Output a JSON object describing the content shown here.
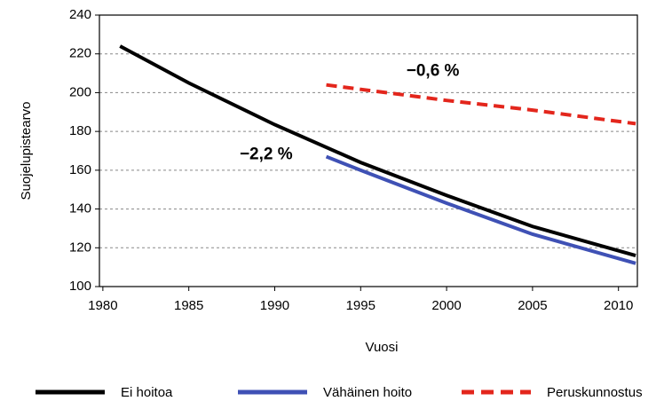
{
  "chart_data": {
    "type": "line",
    "xlabel": "Vuosi",
    "ylabel": "Suojelupistearvo",
    "xlim": [
      1979.8,
      2011.1
    ],
    "xticks": [
      1980,
      1985,
      1990,
      1995,
      2000,
      2005,
      2010
    ],
    "ylim": [
      100,
      240
    ],
    "yticks": [
      100,
      120,
      140,
      160,
      180,
      200,
      220,
      240
    ],
    "grid": true,
    "legend": "bottom",
    "series": [
      {
        "name": "Ei hoitoa",
        "color": "#000000",
        "dash": false,
        "x": [
          1981,
          1985,
          1990,
          1995,
          2000,
          2005,
          2011
        ],
        "values": [
          224,
          205,
          183.5,
          164,
          147,
          131,
          116
        ]
      },
      {
        "name": "Vähäinen hoito",
        "color": "#3f51b5",
        "dash": false,
        "x": [
          1993,
          1995,
          2000,
          2005,
          2011
        ],
        "values": [
          167,
          160,
          143,
          127,
          112
        ]
      },
      {
        "name": "Peruskunnostus",
        "color": "#e3261c",
        "dash": true,
        "x": [
          1993,
          2000,
          2005,
          2011
        ],
        "values": [
          204,
          196,
          191,
          184
        ]
      }
    ],
    "annotations": [
      {
        "text": "−2,2 %",
        "x": 1989.5,
        "y": 168
      },
      {
        "text": "−0,6 %",
        "x": 1999.2,
        "y": 211
      }
    ]
  }
}
